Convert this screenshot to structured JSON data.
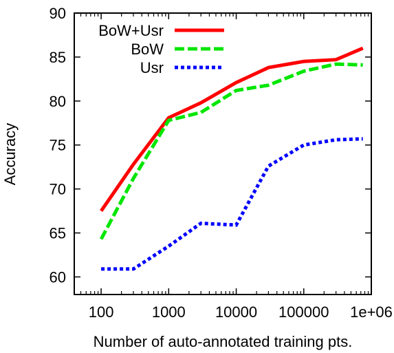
{
  "chart_data": {
    "type": "line",
    "title": "",
    "xlabel": "Number of auto-annotated training pts.",
    "ylabel": "Accuracy",
    "xscale": "log",
    "xlim": [
      40,
      1000000
    ],
    "ylim": [
      58,
      90
    ],
    "xticks": [
      100,
      1000,
      10000,
      100000,
      1000000
    ],
    "xtick_labels": [
      "100",
      "1000",
      "10000",
      "100000",
      "1e+06"
    ],
    "yticks": [
      60,
      65,
      70,
      75,
      80,
      85,
      90
    ],
    "ytick_labels": [
      "60",
      "65",
      "70",
      "75",
      "80",
      "85",
      "90"
    ],
    "grid": false,
    "legend_position": "top-right",
    "series": [
      {
        "name": "BoW+Usr",
        "color": "#ff0000",
        "dash": "solid",
        "x": [
          100,
          300,
          1000,
          3000,
          10000,
          30000,
          100000,
          300000,
          750000
        ],
        "y": [
          67.5,
          72.8,
          78.1,
          79.8,
          82.1,
          83.8,
          84.5,
          84.7,
          86.0
        ]
      },
      {
        "name": "BoW",
        "color": "#00e600",
        "dash": "dashed",
        "x": [
          100,
          300,
          1000,
          3000,
          10000,
          30000,
          100000,
          300000,
          750000
        ],
        "y": [
          64.3,
          71.2,
          77.8,
          78.7,
          81.2,
          81.8,
          83.4,
          84.2,
          84.1
        ]
      },
      {
        "name": "Usr",
        "color": "#0000ff",
        "dash": "dotted",
        "x": [
          100,
          300,
          1000,
          3000,
          10000,
          30000,
          100000,
          300000,
          750000
        ],
        "y": [
          60.9,
          60.9,
          63.5,
          66.1,
          65.9,
          72.6,
          75.0,
          75.6,
          75.7
        ]
      }
    ]
  }
}
